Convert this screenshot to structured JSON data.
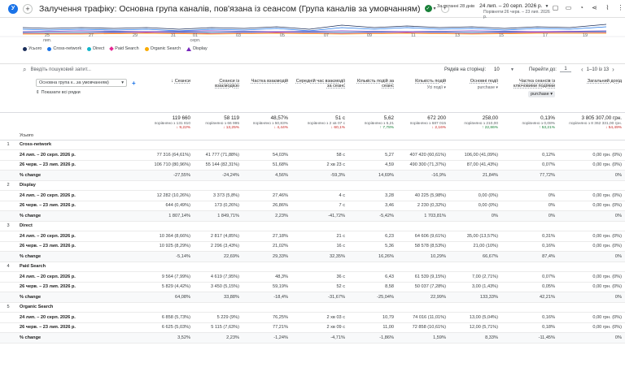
{
  "header": {
    "app_badge": "У",
    "add_symbol": "+",
    "title": "Залучення трафіку: Основна група каналів, пов'язана із сеансом (Група каналів за умовчанням)",
    "check": "✓",
    "last_days": "За останні 28 днів",
    "date_range": "24 лип. – 20 серп. 2026 р.",
    "compare_range": "Порівняти:26 черв. – 23 лип. 2026 р."
  },
  "chart": {
    "x_ticks": [
      {
        "label": "25",
        "sub": "лип."
      },
      {
        "label": "27",
        "sub": ""
      },
      {
        "label": "29",
        "sub": ""
      },
      {
        "label": "31",
        "sub": ""
      },
      {
        "label": "01",
        "sub": "серп."
      },
      {
        "label": "03",
        "sub": ""
      },
      {
        "label": "05",
        "sub": ""
      },
      {
        "label": "07",
        "sub": ""
      },
      {
        "label": "09",
        "sub": ""
      },
      {
        "label": "11",
        "sub": ""
      },
      {
        "label": "13",
        "sub": ""
      },
      {
        "label": "15",
        "sub": ""
      },
      {
        "label": "17",
        "sub": ""
      },
      {
        "label": "19",
        "sub": ""
      }
    ],
    "legend": [
      {
        "name": "Усього",
        "color": "#1a2d5a",
        "shape": "dot"
      },
      {
        "name": "Cross-network",
        "color": "#1a73e8",
        "shape": "dot"
      },
      {
        "name": "Direct",
        "color": "#12b5cb",
        "shape": "dot"
      },
      {
        "name": "Paid Search",
        "color": "#e52592",
        "shape": "diamond"
      },
      {
        "name": "Organic Search",
        "color": "#f9ab00",
        "shape": "dot"
      },
      {
        "name": "Display",
        "color": "#7627bb",
        "shape": "tri"
      }
    ]
  },
  "controls": {
    "search_placeholder": "Введіть пошуковий запит...",
    "rows_label": "Рядків на сторінці:",
    "rows_value": "10",
    "goto_label": "Перейти до:",
    "goto_value": "1",
    "range": "1–10 із 13"
  },
  "table": {
    "dimension_select": "Основна група к...за умовчанням)",
    "show_all": "Показати всі рядки",
    "total_label": "Усього",
    "conversion_select": "Усі події",
    "conversion_select2": "purchase",
    "rate_chip": "purchase",
    "headers": [
      "Сеанси",
      "Сеанси із взаємодією",
      "Частка взаємодій",
      "Середній час взаємодії за сеанс",
      "Кількість подій за сеанс",
      "Кількість подій",
      "Основні події",
      "Частка сеансів із ключовими подіями",
      "Загальний дохід"
    ],
    "totals": [
      {
        "value": "119 660",
        "cmp": "порівняно з 131 810",
        "delta": "↓ 9,22%",
        "dir": "dn"
      },
      {
        "value": "58 119",
        "cmp": "порівняно з 66 995",
        "delta": "↓ 13,25%",
        "dir": "dn"
      },
      {
        "value": "48,57%",
        "cmp": "порівняно з 50,83%",
        "delta": "↓ 4,44%",
        "dir": "dn"
      },
      {
        "value": "51 с",
        "cmp": "порівняно з 2 хв 07 с",
        "delta": "↓ 60,1%",
        "dir": "dn"
      },
      {
        "value": "5,62",
        "cmp": "порівняно з 5,21",
        "delta": "↑ 7,78%",
        "dir": "up"
      },
      {
        "value": "672 200",
        "cmp": "порівняно з 687 015",
        "delta": "↓ 2,16%",
        "dir": "dn"
      },
      {
        "value": "258,00",
        "cmp": "порівняно з 210,00",
        "delta": "↑ 22,86%",
        "dir": "up"
      },
      {
        "value": "0,13%",
        "cmp": "порівняно з 0,08%",
        "delta": "↑ 53,21%",
        "dir": "up"
      },
      {
        "value": "3 805 307,00 грн.",
        "cmp": "порівняно з 8 362 331,00 грн.",
        "delta": "↓ 54,49%",
        "dir": "dn"
      }
    ],
    "groups": [
      {
        "no": "1",
        "name": "Cross-network",
        "rows": [
          {
            "label": "24 лип. – 20 серп. 2026 р.",
            "cells": [
              "77 316 (64,61%)",
              "41 777 (71,88%)",
              "54,03%",
              "58 с",
              "5,27",
              "407 420 (60,61%)",
              "106,00 (41,09%)",
              "0,12%",
              "0,00 грн. (0%)"
            ]
          },
          {
            "label": "26 черв. – 23 лип. 2026 р.",
            "cells": [
              "106 710 (80,96%)",
              "55 144 (82,31%)",
              "51,68%",
              "2 хв 23 с",
              "4,59",
              "490 300 (71,37%)",
              "87,00 (41,43%)",
              "0,07%",
              "0,00 грн. (0%)"
            ]
          },
          {
            "label": "% change",
            "cells": [
              "-27,55%",
              "-24,24%",
              "4,56%",
              "-59,3%",
              "14,69%",
              "-16,9%",
              "21,84%",
              "77,72%",
              "0%"
            ]
          }
        ]
      },
      {
        "no": "2",
        "name": "Display",
        "rows": [
          {
            "label": "24 лип. – 20 серп. 2026 р.",
            "cells": [
              "12 282 (10,26%)",
              "3 373 (5,8%)",
              "27,46%",
              "4 с",
              "3,28",
              "40 225 (5,98%)",
              "0,00 (0%)",
              "0%",
              "0,00 грн. (0%)"
            ]
          },
          {
            "label": "26 черв. – 23 лип. 2026 р.",
            "cells": [
              "644 (0,49%)",
              "173 (0,26%)",
              "26,86%",
              "7 с",
              "3,46",
              "2 230 (0,32%)",
              "0,00 (0%)",
              "0%",
              "0,00 грн. (0%)"
            ]
          },
          {
            "label": "% change",
            "cells": [
              "1 807,14%",
              "1 849,71%",
              "2,23%",
              "-41,72%",
              "-5,42%",
              "1 703,81%",
              "0%",
              "0%",
              "0%"
            ]
          }
        ]
      },
      {
        "no": "3",
        "name": "Direct",
        "rows": [
          {
            "label": "24 лип. – 20 серп. 2026 р.",
            "cells": [
              "10 364 (8,66%)",
              "2 817 (4,85%)",
              "27,18%",
              "21 с",
              "6,23",
              "64 606 (9,61%)",
              "35,00 (13,57%)",
              "0,31%",
              "0,00 грн. (0%)"
            ]
          },
          {
            "label": "26 черв. – 23 лип. 2026 р.",
            "cells": [
              "10 925 (8,29%)",
              "2 296 (3,43%)",
              "21,02%",
              "16 с",
              "5,36",
              "58 578 (8,53%)",
              "21,00 (10%)",
              "0,16%",
              "0,00 грн. (0%)"
            ]
          },
          {
            "label": "% change",
            "cells": [
              "-5,14%",
              "22,69%",
              "29,33%",
              "32,35%",
              "16,26%",
              "10,29%",
              "66,67%",
              "87,4%",
              "0%"
            ]
          }
        ]
      },
      {
        "no": "4",
        "name": "Paid Search",
        "rows": [
          {
            "label": "24 лип. – 20 серп. 2026 р.",
            "cells": [
              "9 564 (7,99%)",
              "4 619 (7,95%)",
              "48,3%",
              "36 с",
              "6,43",
              "61 539 (9,15%)",
              "7,00 (2,71%)",
              "0,07%",
              "0,00 грн. (0%)"
            ]
          },
          {
            "label": "26 черв. – 23 лип. 2026 р.",
            "cells": [
              "5 829 (4,42%)",
              "3 450 (5,15%)",
              "59,19%",
              "52 с",
              "8,58",
              "50 037 (7,28%)",
              "3,00 (1,43%)",
              "0,05%",
              "0,00 грн. (0%)"
            ]
          },
          {
            "label": "% change",
            "cells": [
              "64,08%",
              "33,88%",
              "-18,4%",
              "-31,67%",
              "-25,04%",
              "22,99%",
              "133,33%",
              "42,21%",
              "0%"
            ]
          }
        ]
      },
      {
        "no": "5",
        "name": "Organic Search",
        "rows": [
          {
            "label": "24 лип. – 20 серп. 2026 р.",
            "cells": [
              "6 858 (5,73%)",
              "5 229 (9%)",
              "76,25%",
              "2 хв 03 с",
              "10,79",
              "74 016 (11,01%)",
              "13,00 (5,04%)",
              "0,16%",
              "0,00 грн. (0%)"
            ]
          },
          {
            "label": "26 черв. – 23 лип. 2026 р.",
            "cells": [
              "6 625 (5,03%)",
              "5 115 (7,63%)",
              "77,21%",
              "2 хв 09 с",
              "11,00",
              "72 858 (10,61%)",
              "12,00 (5,71%)",
              "0,18%",
              "0,00 грн. (0%)"
            ]
          },
          {
            "label": "% change",
            "cells": [
              "3,52%",
              "2,23%",
              "-1,24%",
              "-4,71%",
              "-1,86%",
              "1,59%",
              "8,33%",
              "-11,45%",
              "0%"
            ]
          }
        ]
      }
    ]
  }
}
